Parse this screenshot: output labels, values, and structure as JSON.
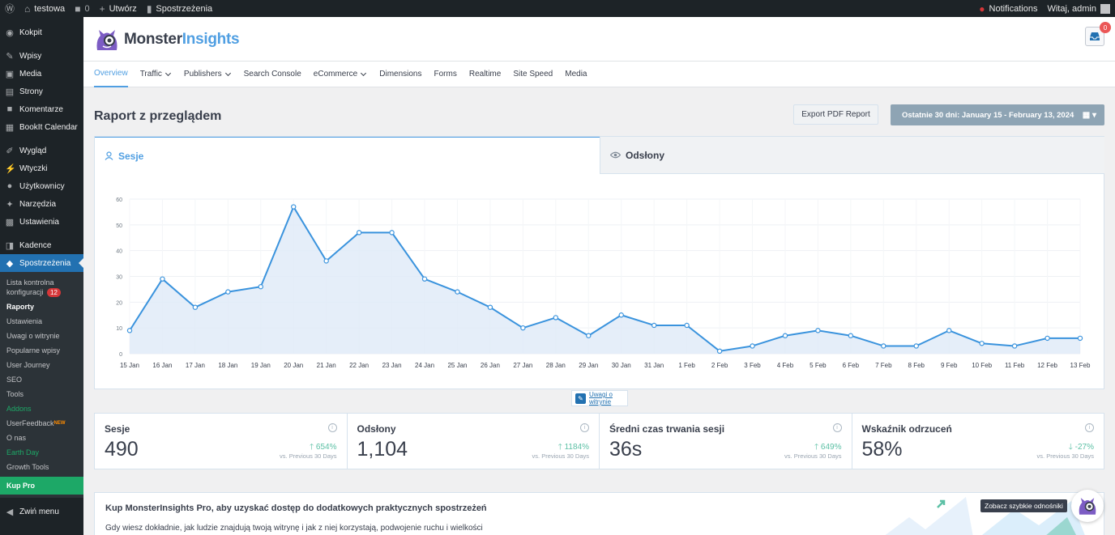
{
  "admin_bar": {
    "site_name": "testowa",
    "comments_count": "0",
    "new_label": "Utwórz",
    "insights_label": "Spostrzeżenia",
    "notifications_label": "Notifications",
    "greeting": "Witaj, admin"
  },
  "sidebar": {
    "items": [
      {
        "label": "Kokpit",
        "icon": "gauge-icon"
      },
      {
        "label": "Wpisy",
        "icon": "pin-icon"
      },
      {
        "label": "Media",
        "icon": "media-icon"
      },
      {
        "label": "Strony",
        "icon": "page-icon"
      },
      {
        "label": "Komentarze",
        "icon": "comment-icon"
      },
      {
        "label": "BookIt Calendar",
        "icon": "calendar-icon"
      },
      {
        "label": "Wygląd",
        "icon": "brush-icon"
      },
      {
        "label": "Wtyczki",
        "icon": "plugin-icon"
      },
      {
        "label": "Użytkownicy",
        "icon": "user-icon"
      },
      {
        "label": "Narzędzia",
        "icon": "wrench-icon"
      },
      {
        "label": "Ustawienia",
        "icon": "settings-icon"
      },
      {
        "label": "Kadence",
        "icon": "kadence-icon"
      },
      {
        "label": "Spostrzeżenia",
        "icon": "monster-icon"
      }
    ],
    "submenu": {
      "checklist_line1": "Lista kontrolna",
      "checklist_line2": "konfiguracji",
      "checklist_badge": "12",
      "raporty": "Raporty",
      "ustawienia": "Ustawienia",
      "uwagi": "Uwagi o witrynie",
      "popularne": "Popularne wpisy",
      "journey": "User Journey",
      "seo": "SEO",
      "tools": "Tools",
      "addons": "Addons",
      "userfeedback": "UserFeedback",
      "new_badge": "NEW",
      "onas": "O nas",
      "earthday": "Earth Day",
      "growth": "Growth Tools",
      "kuppro": "Kup Pro"
    },
    "collapse_label": "Zwiń menu"
  },
  "header": {
    "brand_1": "Monster",
    "brand_2": "Insights",
    "notification_count": "0"
  },
  "nav": {
    "tabs": [
      "Overview",
      "Traffic",
      "Publishers",
      "Search Console",
      "eCommerce",
      "Dimensions",
      "Forms",
      "Realtime",
      "Site Speed",
      "Media"
    ]
  },
  "report": {
    "title": "Raport z przeglądem",
    "export_label": "Export PDF Report",
    "date_label": "Ostatnie 30 dni: January 15 - February 13, 2024"
  },
  "chart_tabs": {
    "sessions": "Sesje",
    "pageviews": "Odsłony"
  },
  "chart_data": {
    "type": "area",
    "title": "",
    "xlabel": "",
    "ylabel": "",
    "categories": [
      "15 Jan",
      "16 Jan",
      "17 Jan",
      "18 Jan",
      "19 Jan",
      "20 Jan",
      "21 Jan",
      "22 Jan",
      "23 Jan",
      "24 Jan",
      "25 Jan",
      "26 Jan",
      "27 Jan",
      "28 Jan",
      "29 Jan",
      "30 Jan",
      "31 Jan",
      "1 Feb",
      "2 Feb",
      "3 Feb",
      "4 Feb",
      "5 Feb",
      "6 Feb",
      "7 Feb",
      "8 Feb",
      "9 Feb",
      "10 Feb",
      "11 Feb",
      "12 Feb",
      "13 Feb"
    ],
    "series": [
      {
        "values": [
          9,
          29,
          18,
          24,
          26,
          57,
          36,
          47,
          47,
          29,
          24,
          18,
          10,
          14,
          7,
          15,
          11,
          11,
          1,
          3,
          7,
          9,
          7,
          3,
          3,
          9,
          4,
          3,
          6,
          6
        ]
      }
    ],
    "yticks": [
      0,
      10,
      20,
      30,
      40,
      50,
      60
    ],
    "ylim": [
      0,
      60
    ],
    "grid": true,
    "line_color": "#3a93dd",
    "fill_color": "#deeaf7"
  },
  "site_notes": {
    "label_line1": "Uwagi o",
    "label_line2": "witrynie"
  },
  "stats": [
    {
      "label": "Sesje",
      "value": "490",
      "change": "654%",
      "direction": "up",
      "prev": "vs. Previous 30 Days"
    },
    {
      "label": "Odsłony",
      "value": "1,104",
      "change": "1184%",
      "direction": "up",
      "prev": "vs. Previous 30 Days"
    },
    {
      "label": "Średni czas trwania sesji",
      "value": "36s",
      "change": "649%",
      "direction": "up",
      "prev": "vs. Previous 30 Days"
    },
    {
      "label": "Wskaźnik odrzuceń",
      "value": "58%",
      "change": "-27%",
      "direction": "down",
      "prev": "vs. Previous 30 Days"
    }
  ],
  "upsell": {
    "title": "Kup MonsterInsights Pro, aby uzyskać dostęp do dodatkowych praktycznych spostrzeżeń",
    "text": "Gdy wiesz dokładnie, jak ludzie znajdują twoją witrynę i jak z niej korzystają, podwojenie ruchu i wielkości"
  },
  "quick_links_tip": "Zobacz szybkie odnośniki",
  "colors": {
    "accent": "#509fe2",
    "positive": "#5cc0a5",
    "wp_active": "#2271b1",
    "pro_green": "#1da867"
  }
}
